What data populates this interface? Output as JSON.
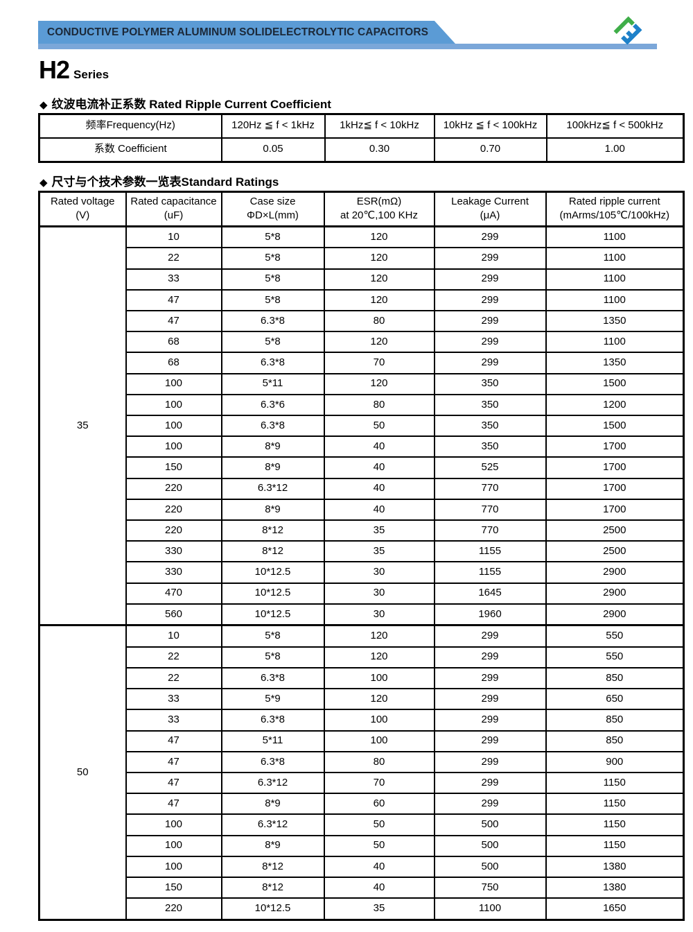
{
  "header": {
    "banner_title": "CONDUCTIVE POLYMER ALUMINUM SOLIDELECTROLYTIC CAPACITORS",
    "series_name": "H2",
    "series_suffix": "Series",
    "colors": {
      "banner_blue": "#5b9bd5",
      "rule_blue": "#7ba7d9",
      "logo_green": "#3fae49",
      "logo_blue": "#1e81c9"
    }
  },
  "coefficient_section": {
    "bullet": "◆",
    "title_cn": "纹波电流补正系数 ",
    "title_en": "Rated Ripple Current Coefficient",
    "table": {
      "header_row": [
        "频率Frequency(Hz)",
        "120Hz ≦ f < 1kHz",
        "1kHz≦  f <  10kHz",
        "10kHz ≦ f <  100kHz",
        "100kHz≦ f <  500kHz"
      ],
      "data_row": [
        "系数  Coefficient",
        "0.05",
        "0.30",
        "0.70",
        "1.00"
      ]
    }
  },
  "ratings_section": {
    "bullet": "◆",
    "title_cn": "尺寸与个技术参数一览表",
    "title_en": "Standard Ratings",
    "table": {
      "headers": [
        {
          "line1": "Rated voltage",
          "line2": "(V)"
        },
        {
          "line1": "Rated capacitance",
          "line2": "(uF)"
        },
        {
          "line1": "Case  size",
          "line2": "ΦD×L(mm)"
        },
        {
          "line1": "ESR(mΩ)",
          "line2": "at 20℃,100 KHz"
        },
        {
          "line1": "Leakage Current",
          "line2": "(μA)"
        },
        {
          "line1": "Rated ripple current",
          "line2": "(mArms/105℃/100kHz)"
        }
      ],
      "groups": [
        {
          "voltage": "35",
          "rows": [
            [
              "10",
              "5*8",
              "120",
              "299",
              "1100"
            ],
            [
              "22",
              "5*8",
              "120",
              "299",
              "1100"
            ],
            [
              "33",
              "5*8",
              "120",
              "299",
              "1100"
            ],
            [
              "47",
              "5*8",
              "120",
              "299",
              "1100"
            ],
            [
              "47",
              "6.3*8",
              "80",
              "299",
              "1350"
            ],
            [
              "68",
              "5*8",
              "120",
              "299",
              "1100"
            ],
            [
              "68",
              "6.3*8",
              "70",
              "299",
              "1350"
            ],
            [
              "100",
              "5*11",
              "120",
              "350",
              "1500"
            ],
            [
              "100",
              "6.3*6",
              "80",
              "350",
              "1200"
            ],
            [
              "100",
              "6.3*8",
              "50",
              "350",
              "1500"
            ],
            [
              "100",
              "8*9",
              "40",
              "350",
              "1700"
            ],
            [
              "150",
              "8*9",
              "40",
              "525",
              "1700"
            ],
            [
              "220",
              "6.3*12",
              "40",
              "770",
              "1700"
            ],
            [
              "220",
              "8*9",
              "40",
              "770",
              "1700"
            ],
            [
              "220",
              "8*12",
              "35",
              "770",
              "2500"
            ],
            [
              "330",
              "8*12",
              "35",
              "1155",
              "2500"
            ],
            [
              "330",
              "10*12.5",
              "30",
              "1155",
              "2900"
            ],
            [
              "470",
              "10*12.5",
              "30",
              "1645",
              "2900"
            ],
            [
              "560",
              "10*12.5",
              "30",
              "1960",
              "2900"
            ]
          ]
        },
        {
          "voltage": "50",
          "rows": [
            [
              "10",
              "5*8",
              "120",
              "299",
              "550"
            ],
            [
              "22",
              "5*8",
              "120",
              "299",
              "550"
            ],
            [
              "22",
              "6.3*8",
              "100",
              "299",
              "850"
            ],
            [
              "33",
              "5*9",
              "120",
              "299",
              "650"
            ],
            [
              "33",
              "6.3*8",
              "100",
              "299",
              "850"
            ],
            [
              "47",
              "5*11",
              "100",
              "299",
              "850"
            ],
            [
              "47",
              "6.3*8",
              "80",
              "299",
              "900"
            ],
            [
              "47",
              "6.3*12",
              "70",
              "299",
              "1150"
            ],
            [
              "47",
              "8*9",
              "60",
              "299",
              "1150"
            ],
            [
              "100",
              "6.3*12",
              "50",
              "500",
              "1150"
            ],
            [
              "100",
              "8*9",
              "50",
              "500",
              "1150"
            ],
            [
              "100",
              "8*12",
              "40",
              "500",
              "1380"
            ],
            [
              "150",
              "8*12",
              "40",
              "750",
              "1380"
            ],
            [
              "220",
              "10*12.5",
              "35",
              "1100",
              "1650"
            ]
          ]
        }
      ]
    }
  }
}
